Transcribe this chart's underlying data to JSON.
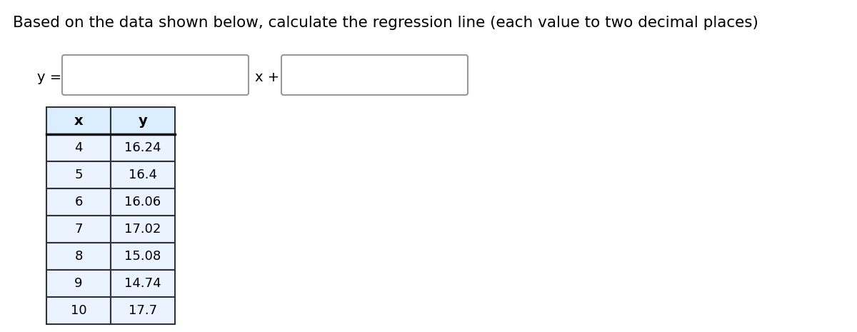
{
  "title": "Based on the data shown below, calculate the regression line (each value to two decimal places)",
  "title_fontsize": 15.5,
  "table_x_values": [
    4,
    5,
    6,
    7,
    8,
    9,
    10
  ],
  "table_y_values": [
    "16.24",
    "16.4",
    "16.06",
    "17.02",
    "15.08",
    "14.74",
    "17.7"
  ],
  "header_bg": "#daeeff",
  "cell_bg": "#eaf3ff",
  "border_color": "#333333",
  "header_border_color": "#111111",
  "text_color": "#000000",
  "background_color": "#ffffff",
  "fig_width": 12.0,
  "fig_height": 4.65,
  "dpi": 100
}
